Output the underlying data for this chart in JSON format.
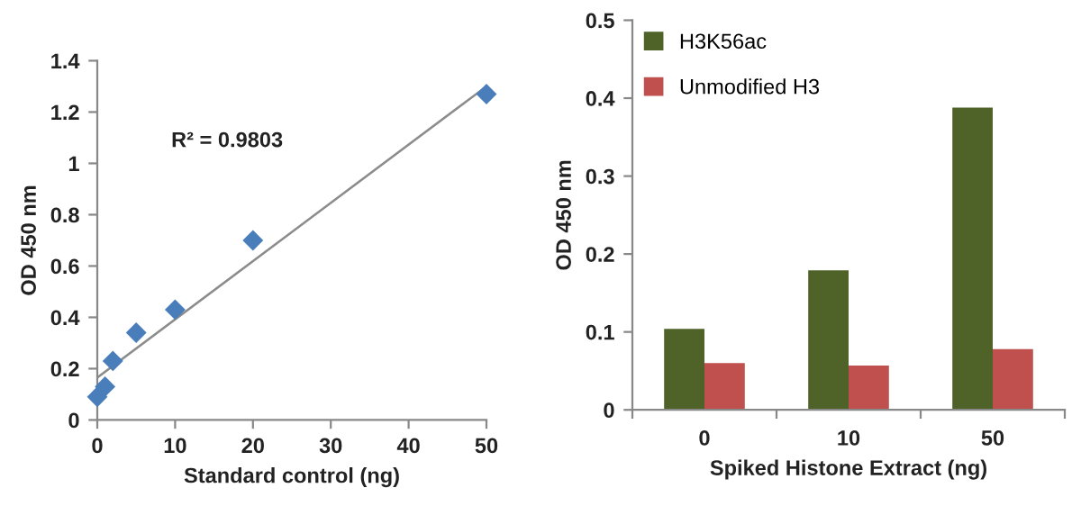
{
  "chart_data": [
    {
      "type": "scatter",
      "xlabel": "Standard control (ng)",
      "ylabel": "OD 450 nm",
      "xlim": [
        0,
        50
      ],
      "xticks": [
        0,
        10,
        20,
        30,
        40,
        50
      ],
      "ylim": [
        0,
        1.4
      ],
      "yticks": [
        0,
        0.2,
        0.4,
        0.6,
        0.8,
        1,
        1.2,
        1.4
      ],
      "grid": false,
      "legend": false,
      "marker": "diamond",
      "annotations": [
        "R² = 0.9803"
      ],
      "series": [
        {
          "color": "#4a7ebb",
          "x": [
            0,
            1,
            2,
            5,
            10,
            20,
            50
          ],
          "values": [
            0.09,
            0.13,
            0.23,
            0.34,
            0.43,
            0.7,
            1.27
          ]
        },
        {
          "type": "line",
          "color": "#8c8c8c",
          "marker": "none",
          "x": [
            0,
            50
          ],
          "values": [
            0.165,
            1.3
          ]
        }
      ]
    },
    {
      "type": "bar",
      "xlabel": "Spiked Histone Extract (ng)",
      "ylabel": "OD 450 nm",
      "categories": [
        "0",
        "10",
        "50"
      ],
      "ylim": [
        0,
        0.5
      ],
      "yticks": [
        0,
        0.1,
        0.2,
        0.3,
        0.4,
        0.5
      ],
      "grid": false,
      "legend": "top left",
      "series": [
        {
          "name": "H3K56ac",
          "color": "#4f6228",
          "values": [
            0.104,
            0.179,
            0.388
          ]
        },
        {
          "name": "Unmodified H3",
          "color": "#c0504d",
          "values": [
            0.06,
            0.057,
            0.078
          ]
        }
      ]
    }
  ]
}
